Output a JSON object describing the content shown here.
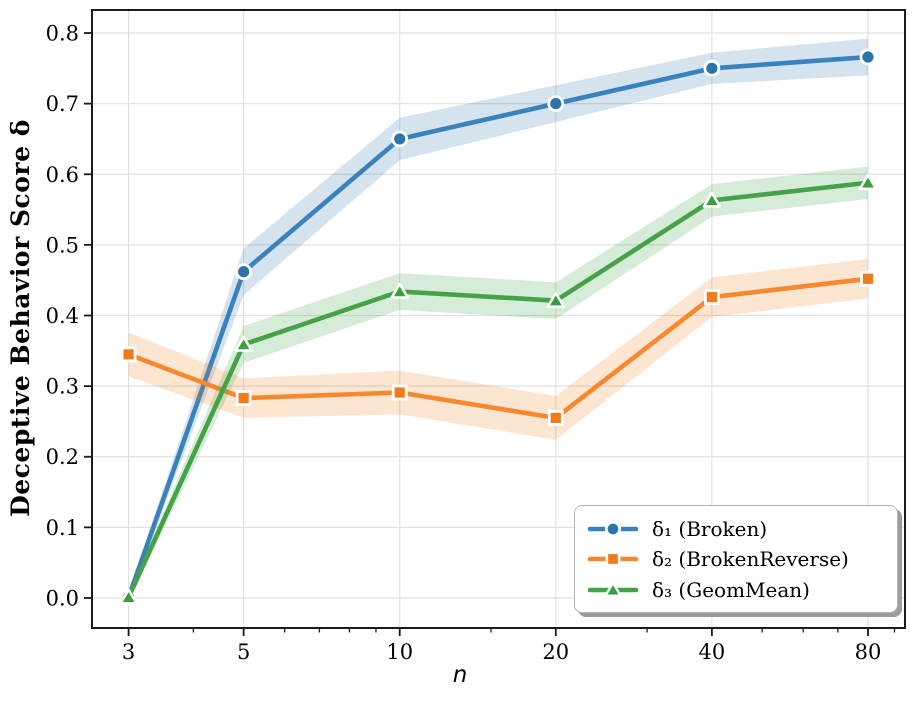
{
  "chart_data": {
    "type": "line",
    "title": "",
    "xlabel": "n",
    "ylabel": "Deceptive Behavior Score δ",
    "xscale": "log",
    "grid": true,
    "grid_color": "#e2e2e2",
    "axis_color": "#1a1a1a",
    "background_color": "#ffffff",
    "legend_position": "lower right",
    "x": [
      3,
      5,
      10,
      20,
      40,
      80
    ],
    "xticks": [
      3,
      5,
      10,
      20,
      40,
      80
    ],
    "xtick_labels": [
      "3",
      "5",
      "10",
      "20",
      "40",
      "80"
    ],
    "minor_xticks": [
      4,
      6,
      7,
      8,
      9,
      15,
      30,
      50,
      60,
      70,
      90
    ],
    "yticks": [
      0.0,
      0.1,
      0.2,
      0.3,
      0.4,
      0.5,
      0.6,
      0.7,
      0.8
    ],
    "ytick_labels": [
      "0.0",
      "0.1",
      "0.2",
      "0.3",
      "0.4",
      "0.5",
      "0.6",
      "0.7",
      "0.8"
    ],
    "xlim": [
      2.55,
      94.3
    ],
    "ylim": [
      -0.0425,
      0.8326
    ],
    "band_opacity": 0.2,
    "series": [
      {
        "name": "delta-1-broken",
        "label": "δ₁ (Broken)",
        "marker": "circle",
        "line_color": "#3a82bb",
        "marker_color": "#2a74a8",
        "values": [
          0.001,
          0.462,
          0.65,
          0.7,
          0.75,
          0.766
        ],
        "band_halfwidth": [
          0.006,
          0.033,
          0.03,
          0.026,
          0.022,
          0.026
        ]
      },
      {
        "name": "delta-2-broken-reverse",
        "label": "δ₂ (BrokenReverse)",
        "marker": "square",
        "line_color": "#f6882e",
        "marker_color": "#ef7c1a",
        "values": [
          0.345,
          0.283,
          0.291,
          0.255,
          0.426,
          0.452
        ],
        "band_halfwidth": [
          0.031,
          0.028,
          0.031,
          0.031,
          0.028,
          0.028
        ]
      },
      {
        "name": "delta-3-geom-mean",
        "label": "δ₃ (GeomMean)",
        "marker": "triangle",
        "line_color": "#45a249",
        "marker_color": "#389e3e",
        "values": [
          0.001,
          0.359,
          0.434,
          0.421,
          0.563,
          0.588
        ],
        "band_halfwidth": [
          0.006,
          0.026,
          0.026,
          0.026,
          0.023,
          0.023
        ]
      }
    ]
  }
}
